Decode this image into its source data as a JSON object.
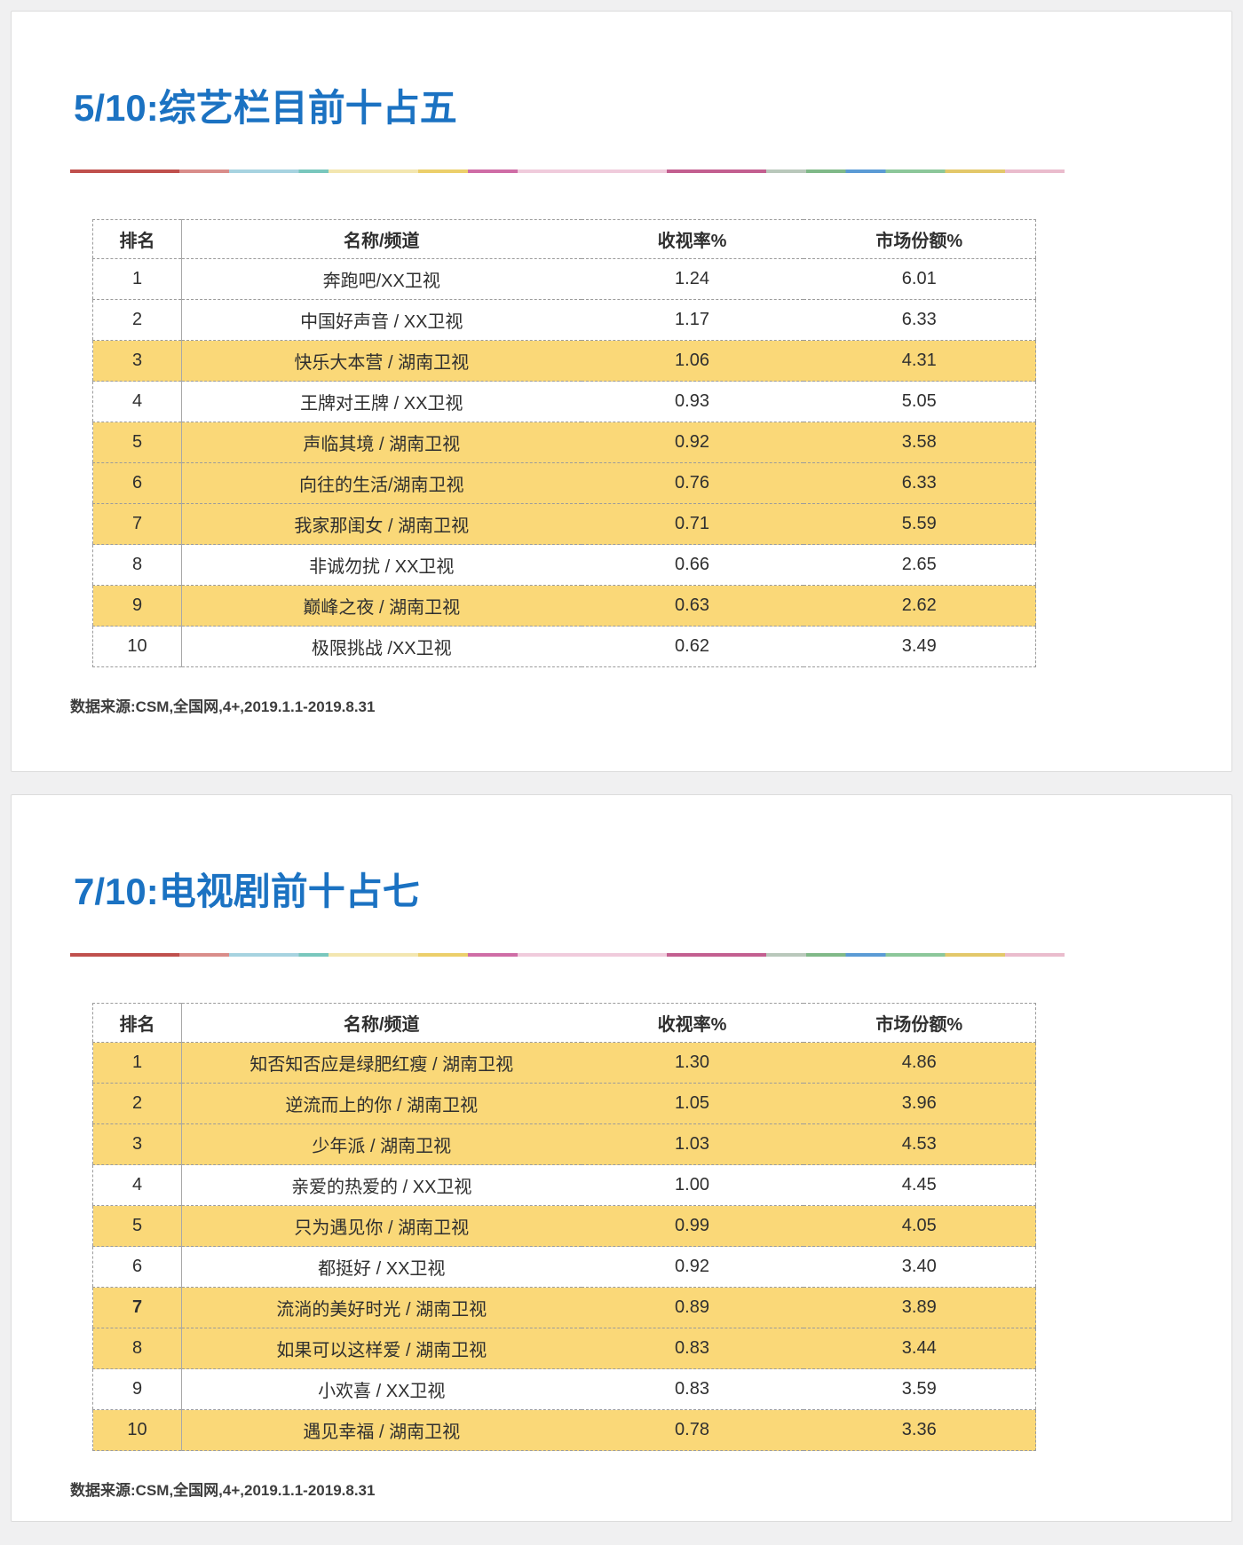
{
  "colors": {
    "page_bg": "#f0f0f1",
    "card_bg": "#ffffff",
    "accent_blue": "#1b72c2",
    "highlight_yellow": "#fad878",
    "table_border": "#9b9b9b"
  },
  "slides": [
    {
      "title": "5/10:综艺栏目前十占五",
      "source": "数据来源:CSM,全国网,4+,2019.1.1-2019.8.31",
      "table": {
        "headers": [
          "排名",
          "名称/频道",
          "收视率%",
          "市场份额%"
        ],
        "rows": [
          {
            "rank": "1",
            "name": "奔跑吧/XX卫视",
            "rating": "1.24",
            "share": "6.01",
            "highlight": false
          },
          {
            "rank": "2",
            "name": "中国好声音 / XX卫视",
            "rating": "1.17",
            "share": "6.33",
            "highlight": false
          },
          {
            "rank": "3",
            "name": "快乐大本营 / 湖南卫视",
            "rating": "1.06",
            "share": "4.31",
            "highlight": true
          },
          {
            "rank": "4",
            "name": "王牌对王牌 / XX卫视",
            "rating": "0.93",
            "share": "5.05",
            "highlight": false
          },
          {
            "rank": "5",
            "name": "声临其境 / 湖南卫视",
            "rating": "0.92",
            "share": "3.58",
            "highlight": true
          },
          {
            "rank": "6",
            "name": "向往的生活/湖南卫视",
            "rating": "0.76",
            "share": "6.33",
            "highlight": true
          },
          {
            "rank": "7",
            "name": "我家那闺女 / 湖南卫视",
            "rating": "0.71",
            "share": "5.59",
            "highlight": true
          },
          {
            "rank": "8",
            "name": "非诚勿扰 / XX卫视",
            "rating": "0.66",
            "share": "2.65",
            "highlight": false
          },
          {
            "rank": "9",
            "name": "巅峰之夜 / 湖南卫视",
            "rating": "0.63",
            "share": "2.62",
            "highlight": true
          },
          {
            "rank": "10",
            "name": "极限挑战 /XX卫视",
            "rating": "0.62",
            "share": "3.49",
            "highlight": false
          }
        ]
      }
    },
    {
      "title": "7/10:电视剧前十占七",
      "source": "数据来源:CSM,全国网,4+,2019.1.1-2019.8.31",
      "table": {
        "headers": [
          "排名",
          "名称/频道",
          "收视率%",
          "市场份额%"
        ],
        "rows": [
          {
            "rank": "1",
            "name": "知否知否应是绿肥红瘦 / 湖南卫视",
            "rating": "1.30",
            "share": "4.86",
            "highlight": true
          },
          {
            "rank": "2",
            "name": "逆流而上的你 / 湖南卫视",
            "rating": "1.05",
            "share": "3.96",
            "highlight": true
          },
          {
            "rank": "3",
            "name": "少年派 / 湖南卫视",
            "rating": "1.03",
            "share": "4.53",
            "highlight": true
          },
          {
            "rank": "4",
            "name": "亲爱的热爱的 / XX卫视",
            "rating": "1.00",
            "share": "4.45",
            "highlight": false
          },
          {
            "rank": "5",
            "name": "只为遇见你 / 湖南卫视",
            "rating": "0.99",
            "share": "4.05",
            "highlight": true
          },
          {
            "rank": "6",
            "name": "都挺好 / XX卫视",
            "rating": "0.92",
            "share": "3.40",
            "highlight": false
          },
          {
            "rank": "7",
            "name": "流淌的美好时光 / 湖南卫视",
            "rating": "0.89",
            "share": "3.89",
            "highlight": true,
            "rank_bold": true
          },
          {
            "rank": "8",
            "name": "如果可以这样爱 / 湖南卫视",
            "rating": "0.83",
            "share": "3.44",
            "highlight": true
          },
          {
            "rank": "9",
            "name": "小欢喜 / XX卫视",
            "rating": "0.83",
            "share": "3.59",
            "highlight": false
          },
          {
            "rank": "10",
            "name": "遇见幸福 / 湖南卫视",
            "rating": "0.78",
            "share": "3.36",
            "highlight": true
          }
        ]
      }
    }
  ]
}
